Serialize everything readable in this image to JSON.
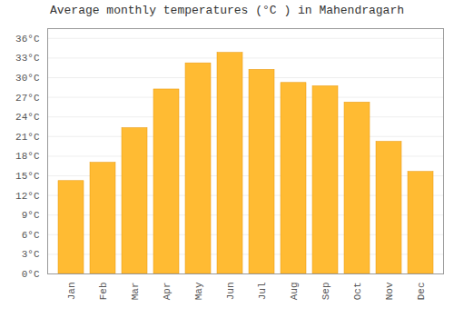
{
  "chart_data": {
    "type": "bar",
    "title": "Average monthly temperatures (°C ) in Mahendragarh",
    "categories": [
      "Jan",
      "Feb",
      "Mar",
      "Apr",
      "May",
      "Jun",
      "Jul",
      "Aug",
      "Sep",
      "Oct",
      "Nov",
      "Dec"
    ],
    "values": [
      14.2,
      17.0,
      22.3,
      28.2,
      32.2,
      33.8,
      31.2,
      29.2,
      28.7,
      26.2,
      20.2,
      15.6
    ],
    "color": "#FFBB33",
    "ylim": [
      0,
      37.5
    ],
    "yticks": [
      {
        "value": 0,
        "label": "0°C"
      },
      {
        "value": 3,
        "label": "3°C"
      },
      {
        "value": 6,
        "label": "6°C"
      },
      {
        "value": 9,
        "label": "9°C"
      },
      {
        "value": 12,
        "label": "12°C"
      },
      {
        "value": 15,
        "label": "15°C"
      },
      {
        "value": 18,
        "label": "18°C"
      },
      {
        "value": 21,
        "label": "21°C"
      },
      {
        "value": 24,
        "label": "24°C"
      },
      {
        "value": 27,
        "label": "27°C"
      },
      {
        "value": 30,
        "label": "30°C"
      },
      {
        "value": 33,
        "label": "33°C"
      },
      {
        "value": 36,
        "label": "36°C"
      }
    ],
    "grid": true
  }
}
